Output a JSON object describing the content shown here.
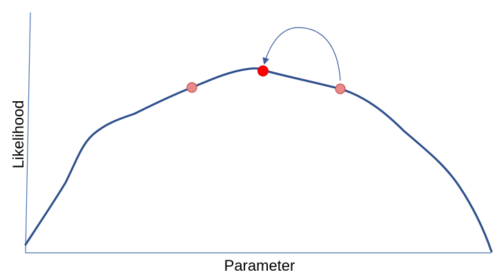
{
  "diagram": {
    "xlabel": "Parameter",
    "ylabel": "Likelihood",
    "colors": {
      "axis": "#4a72b0",
      "curve": "#2e4f8c",
      "optimum_point": "#ff0000",
      "candidate_point_fill": "#e88a8a",
      "candidate_point_stroke": "#c94b4b",
      "arrow": "#3a5a9a"
    },
    "points": [
      {
        "name": "candidate-point-left",
        "kind": "candidate"
      },
      {
        "name": "optimum-point",
        "kind": "optimum"
      },
      {
        "name": "candidate-point-right",
        "kind": "candidate"
      }
    ],
    "arrow": {
      "from": "candidate-point-right",
      "to": "optimum-point"
    }
  }
}
